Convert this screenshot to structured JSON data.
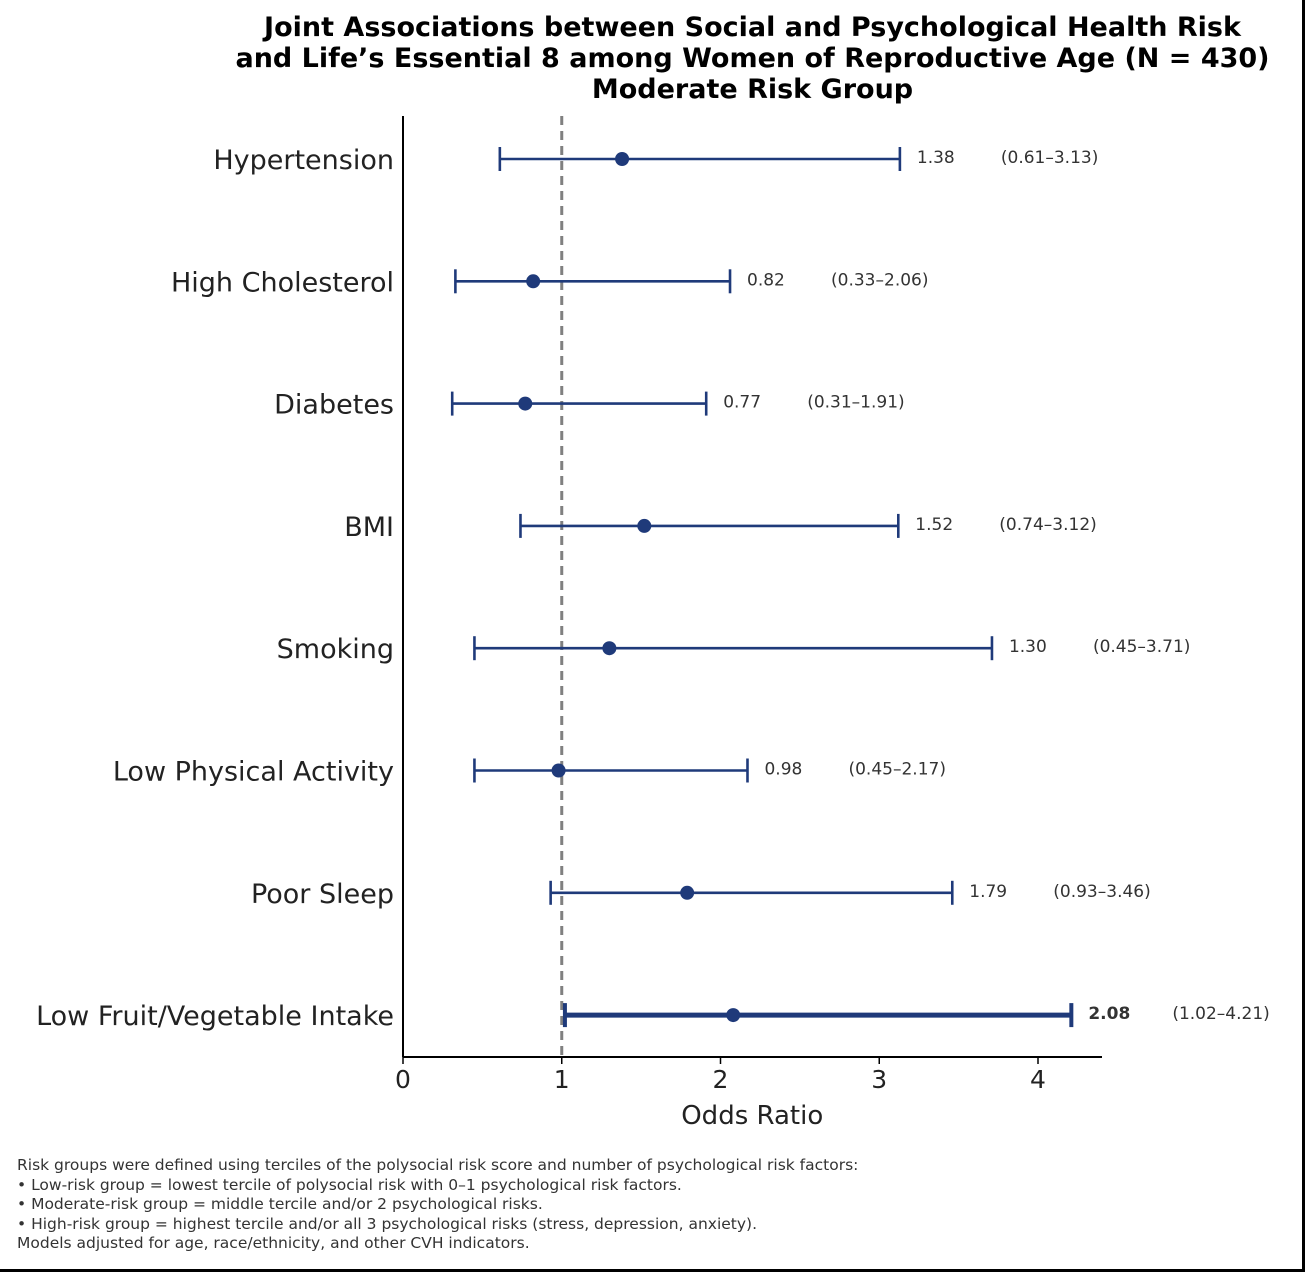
{
  "chart_data": {
    "type": "forest",
    "title_lines": [
      "Joint Associations between Social and Psychological Health Risk",
      "and Life’s Essential 8 among Women of Reproductive Age (N = 430)",
      "Moderate Risk Group"
    ],
    "xlabel": "Odds Ratio",
    "xlim": [
      0,
      4.4
    ],
    "xticks": [
      "0",
      "1",
      "2",
      "3",
      "4"
    ],
    "reference_line": 1,
    "color": "#1f3a7a",
    "rows": [
      {
        "label": "Hypertension",
        "or": 1.38,
        "lo": 0.61,
        "hi": 3.13,
        "or_text": "1.38",
        "ci_text": "(0.61–3.13)",
        "significant": false
      },
      {
        "label": "High Cholesterol",
        "or": 0.82,
        "lo": 0.33,
        "hi": 2.06,
        "or_text": "0.82",
        "ci_text": "(0.33–2.06)",
        "significant": false
      },
      {
        "label": "Diabetes",
        "or": 0.77,
        "lo": 0.31,
        "hi": 1.91,
        "or_text": "0.77",
        "ci_text": "(0.31–1.91)",
        "significant": false
      },
      {
        "label": "BMI",
        "or": 1.52,
        "lo": 0.74,
        "hi": 3.12,
        "or_text": "1.52",
        "ci_text": "(0.74–3.12)",
        "significant": false
      },
      {
        "label": "Smoking",
        "or": 1.3,
        "lo": 0.45,
        "hi": 3.71,
        "or_text": "1.30",
        "ci_text": "(0.45–3.71)",
        "significant": false
      },
      {
        "label": "Low Physical Activity",
        "or": 0.98,
        "lo": 0.45,
        "hi": 2.17,
        "or_text": "0.98",
        "ci_text": "(0.45–2.17)",
        "significant": false
      },
      {
        "label": "Poor Sleep",
        "or": 1.79,
        "lo": 0.93,
        "hi": 3.46,
        "or_text": "1.79",
        "ci_text": "(0.93–3.46)",
        "significant": false
      },
      {
        "label": "Low Fruit/Vegetable Intake",
        "or": 2.08,
        "lo": 1.02,
        "hi": 4.21,
        "or_text": "2.08",
        "ci_text": "(1.02–4.21)",
        "significant": true
      }
    ]
  },
  "footnote": {
    "lines": [
      "Risk groups were defined using terciles of the polysocial risk score and number of psychological risk factors:",
      "• Low-risk group = lowest tercile of polysocial risk with 0–1 psychological risk factors.",
      "• Moderate-risk group = middle tercile and/or 2 psychological risks.",
      "• High-risk group = highest tercile and/or all 3 psychological risks (stress, depression, anxiety).",
      "Models adjusted for age, race/ethnicity, and other CVH indicators."
    ]
  }
}
